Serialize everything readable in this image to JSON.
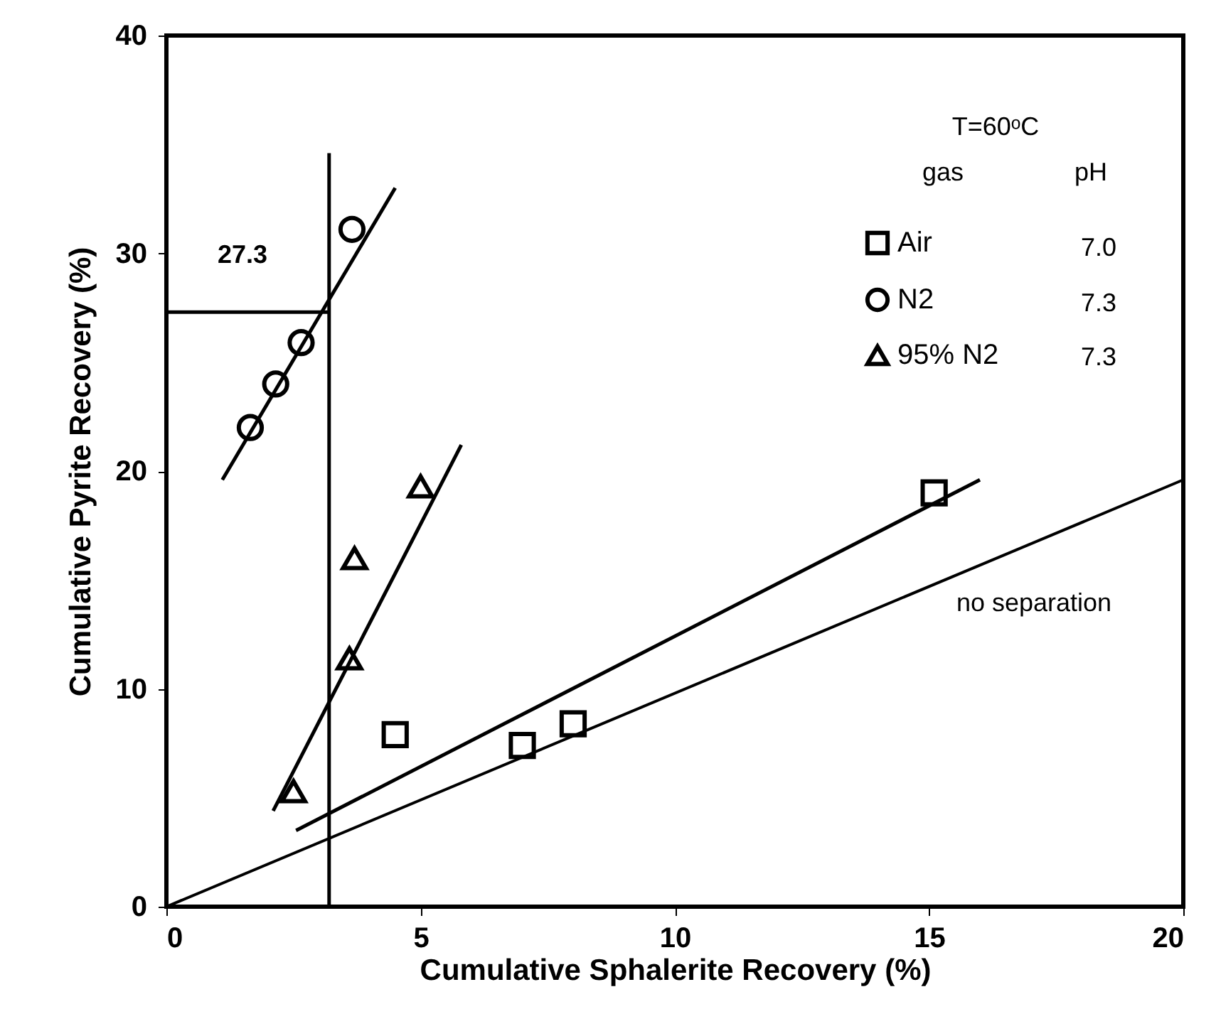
{
  "chart_data": {
    "type": "scatter",
    "xlabel": "Cumulative Sphalerite Recovery (%)",
    "ylabel": "Cumulative Pyrite Recovery (%)",
    "xlim": [
      0,
      20
    ],
    "xticks": [
      0,
      5,
      10,
      15,
      20
    ],
    "ylim": [
      0,
      40
    ],
    "yticks": [
      0,
      10,
      20,
      30,
      40
    ],
    "grid": false,
    "legend": "top right",
    "annotations": [
      "T=60ᵒC",
      "gas",
      "pH",
      "7.0",
      "7.3",
      "7.3",
      "27.3"
    ],
    "series": [
      {
        "name": "Air",
        "marker": "square",
        "color": "#000000",
        "x": [
          4.5,
          7.0,
          8.0,
          15.1
        ],
        "values": [
          7.9,
          7.4,
          8.4,
          19.0
        ]
      },
      {
        "name": "N2",
        "marker": "circle",
        "color": "#000000",
        "x": [
          1.65,
          2.15,
          2.65,
          3.65
        ],
        "values": [
          22.0,
          24.0,
          25.9,
          31.1
        ]
      },
      {
        "name": "95% N2",
        "marker": "triangle",
        "color": "#000000",
        "x": [
          2.5,
          3.6,
          3.7,
          5.0
        ],
        "values": [
          5.3,
          11.4,
          16.0,
          19.3
        ]
      },
      {
        "type": "line",
        "color": "#000000",
        "x": [
          2.55,
          16.0
        ],
        "values": [
          3.5,
          19.6
        ]
      },
      {
        "type": "line",
        "color": "#000000",
        "x": [
          1.1,
          4.5
        ],
        "values": [
          19.6,
          33.0
        ]
      },
      {
        "type": "line",
        "color": "#000000",
        "x": [
          2.1,
          5.8
        ],
        "values": [
          4.4,
          21.2
        ]
      },
      {
        "name": "no separation",
        "type": "line",
        "color": "#000000",
        "x": [
          0,
          20
        ],
        "values": [
          0,
          19.6
        ]
      },
      {
        "type": "line",
        "color": "#000000",
        "x": [
          0,
          3.2
        ],
        "values": [
          27.3,
          27.3
        ]
      },
      {
        "type": "line",
        "color": "#000000",
        "x": [
          3.2,
          3.2
        ],
        "values": [
          0,
          34.6
        ]
      }
    ]
  }
}
